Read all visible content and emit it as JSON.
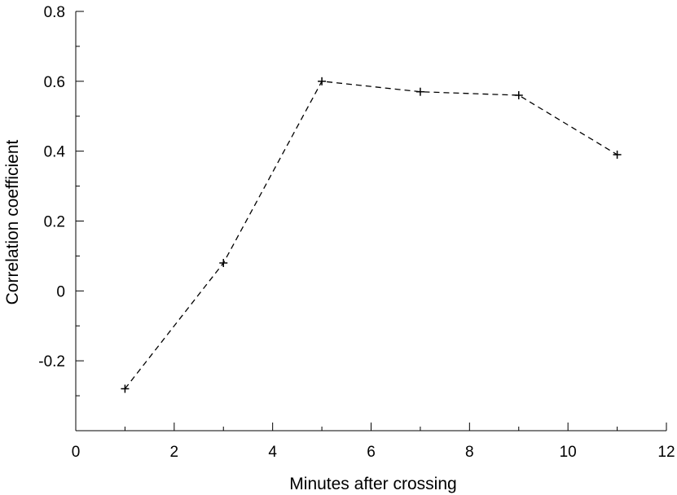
{
  "chart_data": {
    "type": "line",
    "title": "",
    "xlabel": "Minutes after crossing",
    "ylabel": "Correlation coefficient",
    "xlim": [
      0,
      12
    ],
    "ylim": [
      -0.4,
      0.8
    ],
    "xticks": [
      0,
      2,
      4,
      6,
      8,
      10,
      12
    ],
    "xtick_labels": [
      "0",
      "2",
      "4",
      "6",
      "8",
      "10",
      "12"
    ],
    "yticks": [
      -0.2,
      0,
      0.2,
      0.4,
      0.6,
      0.8
    ],
    "ytick_labels": [
      "-0.2",
      "0",
      "0.2",
      "0.4",
      "0.6",
      "0.8"
    ],
    "grid": false,
    "line_style": "dashed",
    "marker": "plus",
    "series": [
      {
        "x": [
          1,
          3,
          5,
          7,
          9,
          11
        ],
        "y": [
          -0.28,
          0.08,
          0.6,
          0.57,
          0.56,
          0.39
        ]
      }
    ]
  }
}
